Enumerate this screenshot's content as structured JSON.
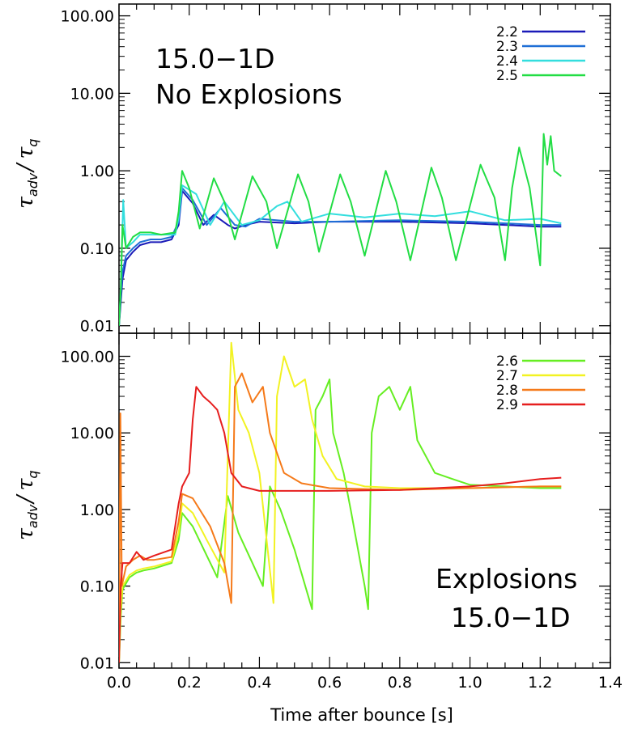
{
  "chart_data": [
    {
      "type": "line",
      "xlabel": "",
      "ylabel_main": "τ",
      "ylabel_sub1": "adv",
      "ylabel_div": "/",
      "ylabel_sub2": "q",
      "yscale": "log",
      "xlim": [
        0.0,
        1.4
      ],
      "ylim": [
        0.01,
        200.0
      ],
      "yticks": [
        "0.01",
        "0.10",
        "1.00",
        "10.00",
        "100.00"
      ],
      "annotations": [
        "15.0−1D",
        "No Explosions"
      ],
      "legend_position": "top-right",
      "series": [
        {
          "name": "2.2",
          "color": "#1a1ab8",
          "points": [
            [
              0.0,
              0.01
            ],
            [
              0.005,
              0.02
            ],
            [
              0.01,
              0.04
            ],
            [
              0.02,
              0.07
            ],
            [
              0.04,
              0.09
            ],
            [
              0.06,
              0.11
            ],
            [
              0.09,
              0.12
            ],
            [
              0.12,
              0.12
            ],
            [
              0.15,
              0.13
            ],
            [
              0.17,
              0.2
            ],
            [
              0.18,
              0.55
            ],
            [
              0.21,
              0.38
            ],
            [
              0.24,
              0.2
            ],
            [
              0.27,
              0.27
            ],
            [
              0.31,
              0.2
            ],
            [
              0.33,
              0.18
            ],
            [
              0.36,
              0.2
            ],
            [
              0.4,
              0.22
            ],
            [
              0.5,
              0.21
            ],
            [
              0.6,
              0.22
            ],
            [
              0.8,
              0.22
            ],
            [
              1.0,
              0.21
            ],
            [
              1.1,
              0.2
            ],
            [
              1.2,
              0.19
            ],
            [
              1.26,
              0.19
            ]
          ]
        },
        {
          "name": "2.3",
          "color": "#1f6fd6",
          "points": [
            [
              0.0,
              0.01
            ],
            [
              0.005,
              0.025
            ],
            [
              0.01,
              0.05
            ],
            [
              0.02,
              0.08
            ],
            [
              0.04,
              0.1
            ],
            [
              0.06,
              0.12
            ],
            [
              0.09,
              0.13
            ],
            [
              0.12,
              0.13
            ],
            [
              0.15,
              0.14
            ],
            [
              0.17,
              0.22
            ],
            [
              0.18,
              0.6
            ],
            [
              0.21,
              0.42
            ],
            [
              0.25,
              0.2
            ],
            [
              0.29,
              0.33
            ],
            [
              0.33,
              0.2
            ],
            [
              0.36,
              0.19
            ],
            [
              0.4,
              0.24
            ],
            [
              0.5,
              0.22
            ],
            [
              0.6,
              0.22
            ],
            [
              0.8,
              0.23
            ],
            [
              1.0,
              0.22
            ],
            [
              1.1,
              0.21
            ],
            [
              1.2,
              0.2
            ],
            [
              1.26,
              0.2
            ]
          ]
        },
        {
          "name": "2.4",
          "color": "#33dede",
          "points": [
            [
              0.0,
              0.01
            ],
            [
              0.005,
              0.03
            ],
            [
              0.012,
              0.42
            ],
            [
              0.02,
              0.1
            ],
            [
              0.04,
              0.12
            ],
            [
              0.06,
              0.15
            ],
            [
              0.09,
              0.15
            ],
            [
              0.12,
              0.15
            ],
            [
              0.16,
              0.15
            ],
            [
              0.17,
              0.25
            ],
            [
              0.18,
              0.65
            ],
            [
              0.22,
              0.5
            ],
            [
              0.26,
              0.2
            ],
            [
              0.3,
              0.4
            ],
            [
              0.35,
              0.2
            ],
            [
              0.4,
              0.23
            ],
            [
              0.45,
              0.35
            ],
            [
              0.48,
              0.4
            ],
            [
              0.52,
              0.22
            ],
            [
              0.6,
              0.28
            ],
            [
              0.7,
              0.25
            ],
            [
              0.8,
              0.28
            ],
            [
              0.9,
              0.26
            ],
            [
              1.0,
              0.3
            ],
            [
              1.1,
              0.23
            ],
            [
              1.2,
              0.24
            ],
            [
              1.26,
              0.21
            ]
          ]
        },
        {
          "name": "2.5",
          "color": "#22dd44",
          "points": [
            [
              0.0,
              0.01
            ],
            [
              0.005,
              0.03
            ],
            [
              0.01,
              0.2
            ],
            [
              0.02,
              0.1
            ],
            [
              0.04,
              0.14
            ],
            [
              0.06,
              0.16
            ],
            [
              0.09,
              0.16
            ],
            [
              0.12,
              0.15
            ],
            [
              0.16,
              0.16
            ],
            [
              0.17,
              0.3
            ],
            [
              0.18,
              1.0
            ],
            [
              0.2,
              0.6
            ],
            [
              0.23,
              0.18
            ],
            [
              0.27,
              0.8
            ],
            [
              0.3,
              0.4
            ],
            [
              0.33,
              0.13
            ],
            [
              0.38,
              0.85
            ],
            [
              0.42,
              0.4
            ],
            [
              0.45,
              0.1
            ],
            [
              0.51,
              0.9
            ],
            [
              0.54,
              0.4
            ],
            [
              0.57,
              0.09
            ],
            [
              0.63,
              0.9
            ],
            [
              0.66,
              0.4
            ],
            [
              0.7,
              0.08
            ],
            [
              0.76,
              1.0
            ],
            [
              0.79,
              0.4
            ],
            [
              0.83,
              0.07
            ],
            [
              0.89,
              1.1
            ],
            [
              0.92,
              0.45
            ],
            [
              0.96,
              0.07
            ],
            [
              1.03,
              1.2
            ],
            [
              1.07,
              0.45
            ],
            [
              1.1,
              0.07
            ],
            [
              1.12,
              0.6
            ],
            [
              1.14,
              2.0
            ],
            [
              1.17,
              0.6
            ],
            [
              1.2,
              0.06
            ],
            [
              1.21,
              3.0
            ],
            [
              1.22,
              1.2
            ],
            [
              1.23,
              2.8
            ],
            [
              1.24,
              1.0
            ],
            [
              1.26,
              0.85
            ]
          ]
        }
      ]
    },
    {
      "type": "line",
      "xlabel": "Time after bounce [s]",
      "ylabel_main": "τ",
      "ylabel_sub1": "adv",
      "ylabel_div": "/",
      "ylabel_sub2": "q",
      "yscale": "log",
      "xlim": [
        0.0,
        1.4
      ],
      "ylim": [
        0.008,
        200.0
      ],
      "xticks": [
        "0.0",
        "0.2",
        "0.4",
        "0.6",
        "0.8",
        "1.0",
        "1.2",
        "1.4"
      ],
      "yticks": [
        "0.01",
        "0.10",
        "1.00",
        "10.00",
        "100.00"
      ],
      "annotations": [
        "Explosions",
        "15.0−1D"
      ],
      "legend_position": "top-right",
      "series": [
        {
          "name": "2.6",
          "color": "#66ee22",
          "points": [
            [
              0.0,
              0.01
            ],
            [
              0.005,
              0.04
            ],
            [
              0.01,
              0.09
            ],
            [
              0.03,
              0.13
            ],
            [
              0.05,
              0.15
            ],
            [
              0.07,
              0.16
            ],
            [
              0.1,
              0.17
            ],
            [
              0.15,
              0.2
            ],
            [
              0.17,
              0.4
            ],
            [
              0.18,
              0.9
            ],
            [
              0.21,
              0.6
            ],
            [
              0.25,
              0.25
            ],
            [
              0.28,
              0.13
            ],
            [
              0.31,
              1.5
            ],
            [
              0.34,
              0.5
            ],
            [
              0.38,
              0.2
            ],
            [
              0.41,
              0.1
            ],
            [
              0.43,
              2.0
            ],
            [
              0.46,
              1.0
            ],
            [
              0.5,
              0.3
            ],
            [
              0.55,
              0.05
            ],
            [
              0.56,
              20
            ],
            [
              0.58,
              30
            ],
            [
              0.6,
              50
            ],
            [
              0.61,
              10
            ],
            [
              0.64,
              3.0
            ],
            [
              0.66,
              1.0
            ],
            [
              0.7,
              0.1
            ],
            [
              0.71,
              0.05
            ],
            [
              0.72,
              10
            ],
            [
              0.74,
              30
            ],
            [
              0.77,
              40
            ],
            [
              0.8,
              20
            ],
            [
              0.83,
              40
            ],
            [
              0.85,
              8
            ],
            [
              0.9,
              3
            ],
            [
              0.95,
              2.5
            ],
            [
              1.0,
              2.1
            ],
            [
              1.1,
              2.0
            ],
            [
              1.2,
              1.9
            ],
            [
              1.26,
              1.9
            ]
          ]
        },
        {
          "name": "2.7",
          "color": "#f2f222",
          "points": [
            [
              0.0,
              0.01
            ],
            [
              0.005,
              0.05
            ],
            [
              0.01,
              0.1
            ],
            [
              0.03,
              0.14
            ],
            [
              0.05,
              0.16
            ],
            [
              0.07,
              0.17
            ],
            [
              0.1,
              0.18
            ],
            [
              0.15,
              0.21
            ],
            [
              0.17,
              0.5
            ],
            [
              0.18,
              1.2
            ],
            [
              0.21,
              0.9
            ],
            [
              0.25,
              0.4
            ],
            [
              0.3,
              0.15
            ],
            [
              0.31,
              5
            ],
            [
              0.32,
              150
            ],
            [
              0.34,
              20
            ],
            [
              0.37,
              10
            ],
            [
              0.4,
              3
            ],
            [
              0.44,
              0.06
            ],
            [
              0.45,
              30
            ],
            [
              0.47,
              100
            ],
            [
              0.5,
              40
            ],
            [
              0.53,
              50
            ],
            [
              0.55,
              15
            ],
            [
              0.58,
              5
            ],
            [
              0.62,
              2.5
            ],
            [
              0.7,
              2.0
            ],
            [
              0.8,
              1.9
            ],
            [
              1.0,
              1.9
            ],
            [
              1.2,
              2.0
            ],
            [
              1.26,
              2.0
            ]
          ]
        },
        {
          "name": "2.8",
          "color": "#f57a1a",
          "points": [
            [
              0.0,
              0.01
            ],
            [
              0.004,
              18
            ],
            [
              0.008,
              0.1
            ],
            [
              0.02,
              0.18
            ],
            [
              0.04,
              0.22
            ],
            [
              0.06,
              0.25
            ],
            [
              0.08,
              0.22
            ],
            [
              0.1,
              0.22
            ],
            [
              0.15,
              0.24
            ],
            [
              0.17,
              0.7
            ],
            [
              0.18,
              1.6
            ],
            [
              0.21,
              1.4
            ],
            [
              0.26,
              0.6
            ],
            [
              0.3,
              0.2
            ],
            [
              0.32,
              0.06
            ],
            [
              0.33,
              40
            ],
            [
              0.35,
              60
            ],
            [
              0.38,
              25
            ],
            [
              0.41,
              40
            ],
            [
              0.43,
              10
            ],
            [
              0.47,
              3
            ],
            [
              0.52,
              2.2
            ],
            [
              0.6,
              1.9
            ],
            [
              0.8,
              1.8
            ],
            [
              1.0,
              1.9
            ],
            [
              1.2,
              2.0
            ],
            [
              1.26,
              2.0
            ]
          ]
        },
        {
          "name": "2.9",
          "color": "#e61e1e",
          "points": [
            [
              0.0,
              0.01
            ],
            [
              0.005,
              0.1
            ],
            [
              0.01,
              0.2
            ],
            [
              0.03,
              0.2
            ],
            [
              0.05,
              0.28
            ],
            [
              0.07,
              0.22
            ],
            [
              0.1,
              0.25
            ],
            [
              0.15,
              0.3
            ],
            [
              0.17,
              1.2
            ],
            [
              0.18,
              2.0
            ],
            [
              0.2,
              3.0
            ],
            [
              0.21,
              15
            ],
            [
              0.22,
              40
            ],
            [
              0.24,
              30
            ],
            [
              0.26,
              25
            ],
            [
              0.28,
              20
            ],
            [
              0.3,
              10
            ],
            [
              0.32,
              3
            ],
            [
              0.35,
              2.0
            ],
            [
              0.4,
              1.75
            ],
            [
              0.5,
              1.75
            ],
            [
              0.6,
              1.75
            ],
            [
              0.8,
              1.8
            ],
            [
              1.0,
              2.0
            ],
            [
              1.1,
              2.2
            ],
            [
              1.2,
              2.5
            ],
            [
              1.26,
              2.6
            ]
          ]
        }
      ]
    }
  ]
}
